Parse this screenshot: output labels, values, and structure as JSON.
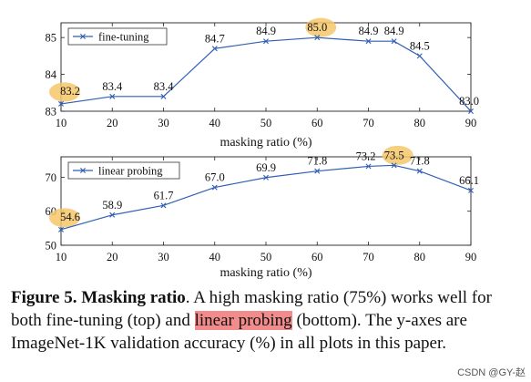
{
  "chart_data": [
    {
      "type": "line",
      "x": [
        10,
        20,
        30,
        40,
        50,
        60,
        70,
        75,
        80,
        90
      ],
      "series": [
        {
          "name": "fine-tuning",
          "values": [
            83.2,
            83.4,
            83.4,
            84.7,
            84.9,
            85.0,
            84.9,
            84.9,
            84.5,
            83.0
          ]
        }
      ],
      "data_labels": [
        "83.2",
        "83.4",
        "83.4",
        "84.7",
        "84.9",
        "85.0",
        "84.9",
        "84.9",
        "84.5",
        "83.0"
      ],
      "highlighted_labels": [
        "83.2",
        "85.0"
      ],
      "xticks": [
        "10",
        "20",
        "30",
        "40",
        "50",
        "60",
        "70",
        "80",
        "90"
      ],
      "yticks": [
        "83",
        "84",
        "85"
      ],
      "xlabel": "masking ratio (%)",
      "ylabel": "",
      "xlim": [
        10,
        90
      ],
      "ylim": [
        83,
        85.4
      ],
      "grid": false,
      "legend": "top-left",
      "color": "#2f5fb3",
      "highlight_color": "#f6c76b"
    },
    {
      "type": "line",
      "x": [
        10,
        20,
        30,
        40,
        50,
        60,
        70,
        75,
        80,
        90
      ],
      "series": [
        {
          "name": "linear probing",
          "values": [
            54.6,
            58.9,
            61.7,
            67.0,
            69.9,
            71.8,
            73.2,
            73.5,
            71.8,
            66.1
          ]
        }
      ],
      "data_labels": [
        "54.6",
        "58.9",
        "61.7",
        "67.0",
        "69.9",
        "71.8",
        "73.2",
        "73.5",
        "71.8",
        "66.1"
      ],
      "highlighted_labels": [
        "54.6",
        "73.5"
      ],
      "xticks": [
        "10",
        "20",
        "30",
        "40",
        "50",
        "60",
        "70",
        "80",
        "90"
      ],
      "yticks": [
        "50",
        "60",
        "70"
      ],
      "xlabel": "masking ratio (%)",
      "ylabel": "",
      "xlim": [
        10,
        90
      ],
      "ylim": [
        50,
        76
      ],
      "grid": false,
      "legend": "top-left",
      "color": "#2f5fb3",
      "highlight_color": "#f6c76b"
    }
  ],
  "caption": {
    "prefix": "Figure 5.",
    "title": "Masking ratio",
    "text_1": ". A high masking ratio (75%) works well for both fine-tuning (top) and ",
    "highlight": "linear probing",
    "text_2": " (bottom). The y-axes are ImageNet-1K validation accuracy (%) in all plots in this paper."
  },
  "watermark": "CSDN @GY-赵"
}
